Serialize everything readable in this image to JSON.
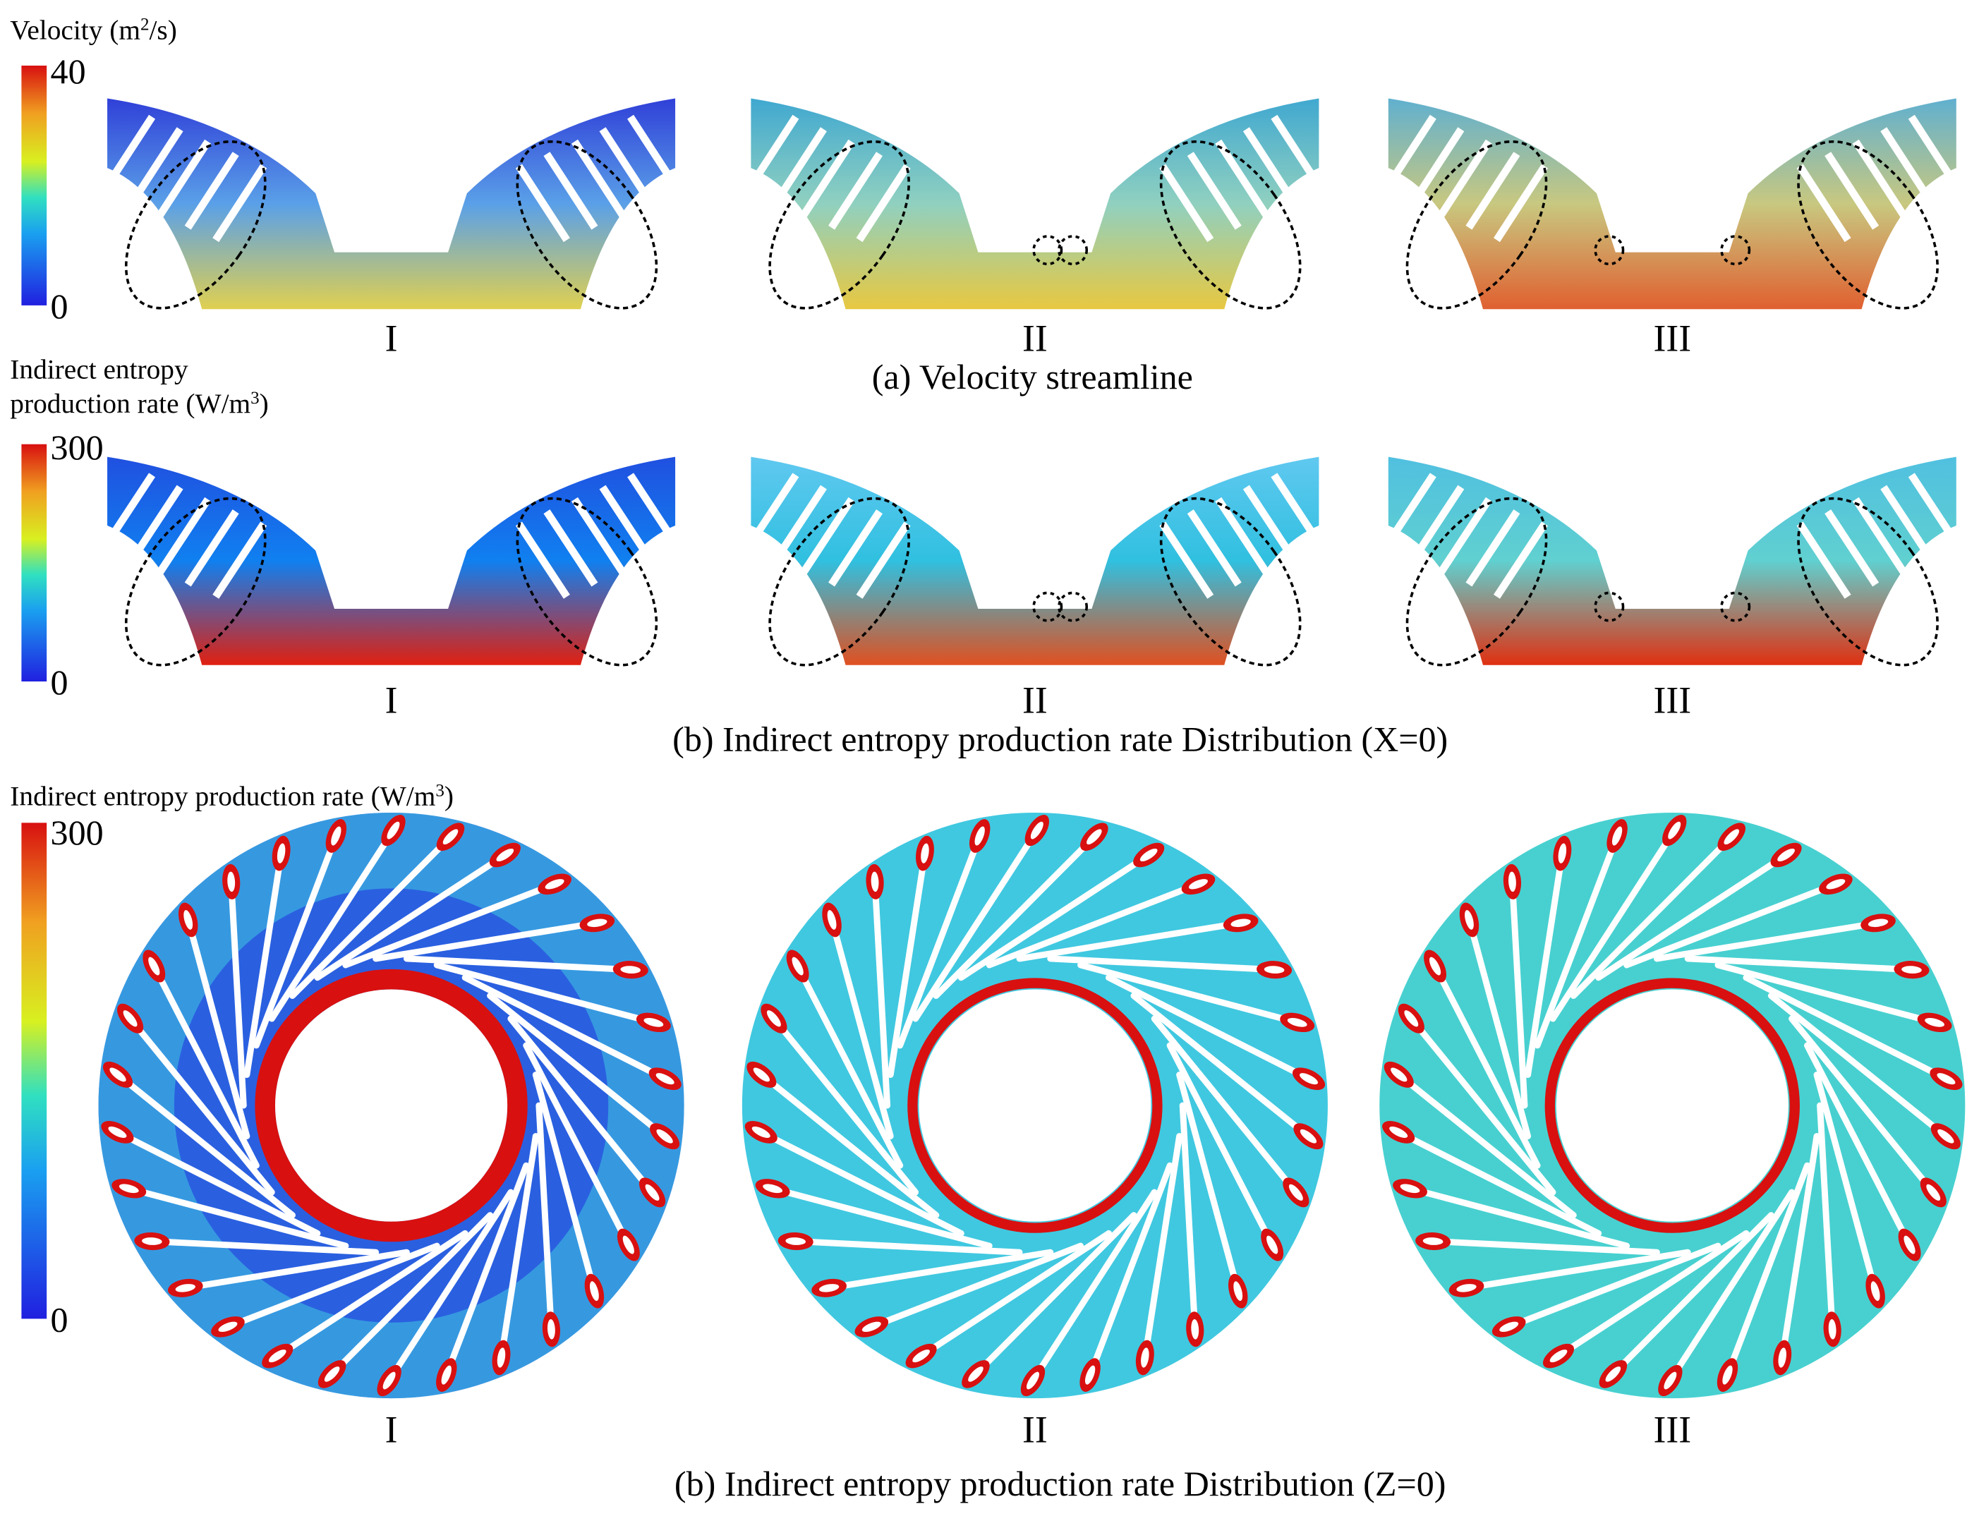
{
  "velocity_panel": {
    "legend": {
      "label_parts": [
        "Velocity (m",
        "2",
        "/s)"
      ],
      "max": 40,
      "min": 0
    },
    "cases": [
      "I",
      "II",
      "III"
    ],
    "caption": "(a) Velocity streamline"
  },
  "entropy_x_panel": {
    "legend": {
      "label_line1": "Indirect entropy",
      "label_line2_parts": [
        "production rate (W/m",
        "3",
        ")"
      ],
      "max": 300,
      "min": 0
    },
    "cases": [
      "I",
      "II",
      "III"
    ],
    "caption": "(b) Indirect entropy production rate Distribution (X=0)"
  },
  "entropy_z_panel": {
    "legend": {
      "label_parts": [
        "Indirect entropy production rate (W/m",
        "3",
        ")"
      ],
      "max": 300,
      "min": 0
    },
    "cases": [
      "I",
      "II",
      "III"
    ],
    "caption": "(b) Indirect entropy production rate Distribution (Z=0)"
  }
}
